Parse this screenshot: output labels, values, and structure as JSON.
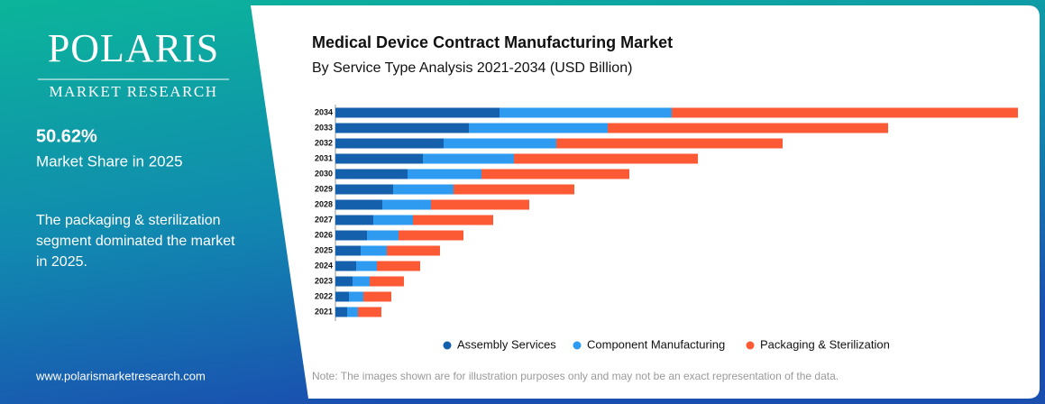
{
  "brand": {
    "name": "POLARIS",
    "tagline": "MARKET RESEARCH",
    "url": "www.polarismarketresearch.com"
  },
  "highlight": {
    "value": "50.62%",
    "label": "Market Share in 2025"
  },
  "summary": [
    "The packaging & sterilization",
    "segment dominated the market",
    "in 2025."
  ],
  "note": "Note: The images shown are for illustration purposes only and may not be an exact representation of the data.",
  "chart_data": {
    "type": "stacked-barh",
    "title": "Medical Device Contract Manufacturing Market",
    "subtitle": "By Service Type Analysis 2021-2034 (USD Billion)",
    "categories": [
      "2021",
      "2022",
      "2023",
      "2024",
      "2025",
      "2026",
      "2027",
      "2028",
      "2029",
      "2030",
      "2031",
      "2032",
      "2033",
      "2034"
    ],
    "series": [
      {
        "name": "Assembly Services",
        "color": "#1560ad",
        "values": [
          1.3,
          1.5,
          1.9,
          2.3,
          2.8,
          3.5,
          4.2,
          5.2,
          6.4,
          8.0,
          9.7,
          12.0,
          14.8,
          18.2
        ]
      },
      {
        "name": "Component Manufacturing",
        "color": "#2e9bf0",
        "values": [
          1.2,
          1.6,
          1.9,
          2.3,
          2.9,
          3.5,
          4.4,
          5.4,
          6.7,
          8.2,
          10.1,
          12.5,
          15.4,
          19.1
        ]
      },
      {
        "name": "Packaging & Sterilization",
        "color": "#fc5a34",
        "values": [
          2.6,
          3.1,
          3.8,
          4.8,
          5.9,
          7.2,
          8.9,
          10.9,
          13.4,
          16.4,
          20.4,
          25.1,
          31.1,
          38.4
        ]
      }
    ],
    "legend": "bottom"
  }
}
